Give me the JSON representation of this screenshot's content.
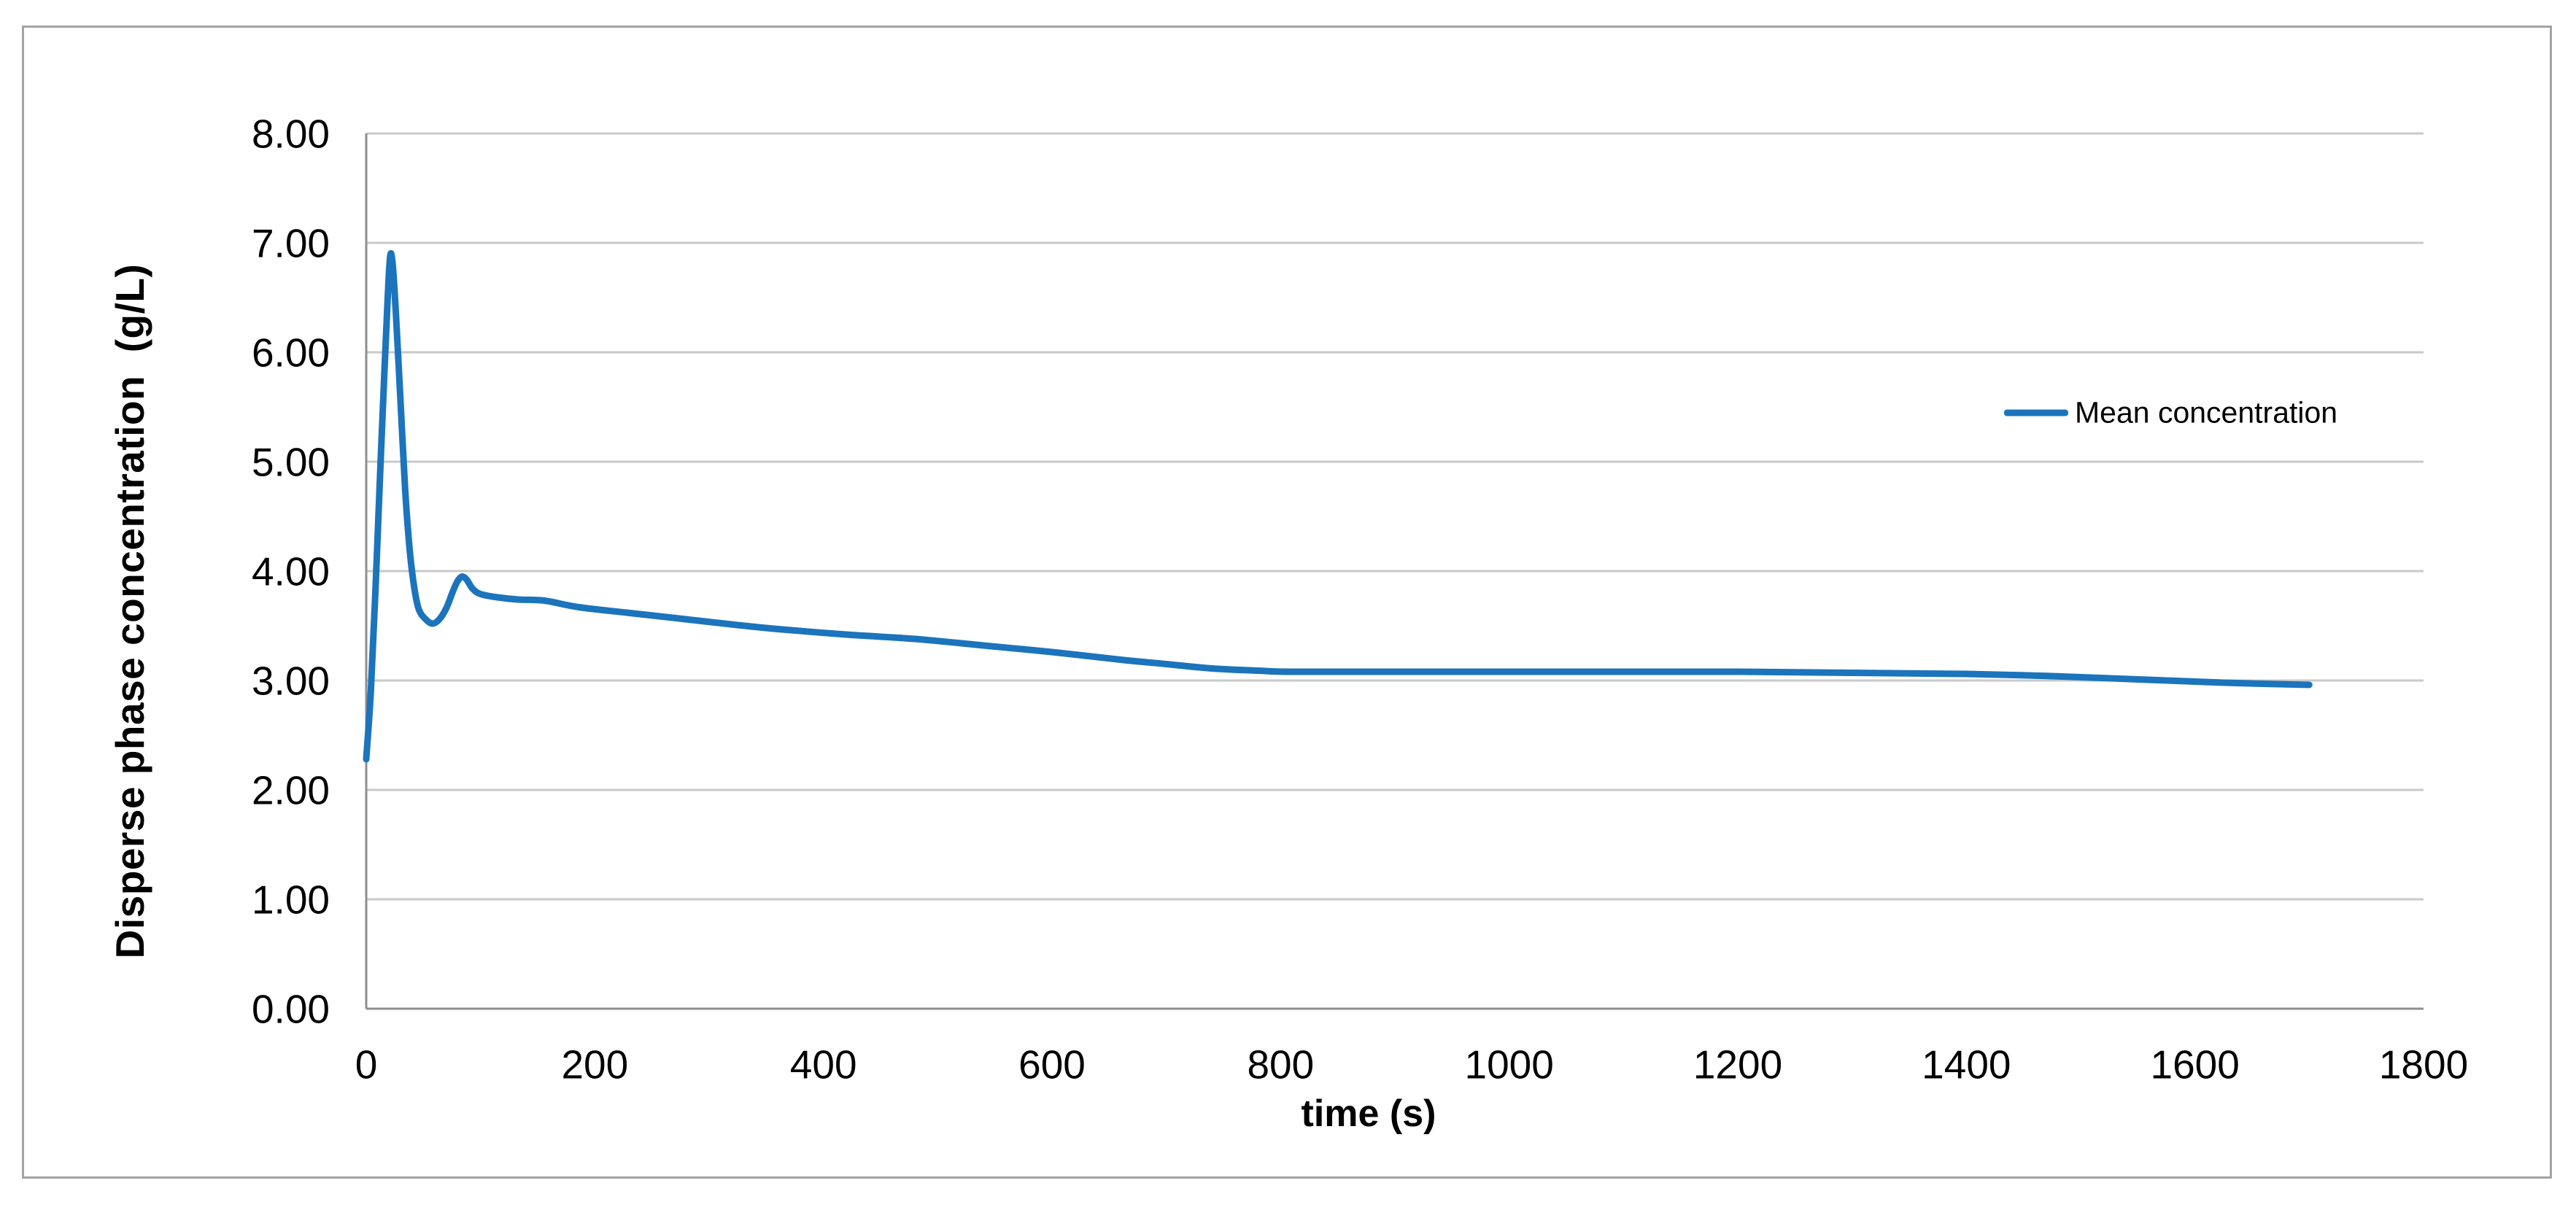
{
  "figure": {
    "background": "#FFFFFF",
    "border_color": "#A3A3A3"
  },
  "styles": {
    "grid_color": "#C9C9C9",
    "axis_color": "#8E8E8E",
    "text_color": "#000000",
    "line_color": "#1B74BC"
  },
  "chart_data": {
    "type": "line",
    "xlabel": "time (s)",
    "ylabel": "Disperse phase concentration  (g/L)",
    "xlim": [
      0,
      1800
    ],
    "ylim": [
      0,
      8
    ],
    "grid": "horizontal-only",
    "legend": {
      "position": "inside-right",
      "entries": [
        {
          "label": "Mean concentration",
          "color": "#1B74BC"
        }
      ]
    },
    "xticks": [
      {
        "value": 0,
        "label": "0"
      },
      {
        "value": 200,
        "label": "200"
      },
      {
        "value": 400,
        "label": "400"
      },
      {
        "value": 600,
        "label": "600"
      },
      {
        "value": 800,
        "label": "800"
      },
      {
        "value": 1000,
        "label": "1000"
      },
      {
        "value": 1200,
        "label": "1200"
      },
      {
        "value": 1400,
        "label": "1400"
      },
      {
        "value": 1600,
        "label": "1600"
      },
      {
        "value": 1800,
        "label": "1800"
      }
    ],
    "yticks": [
      {
        "value": 0,
        "label": "0.00"
      },
      {
        "value": 1,
        "label": "1.00"
      },
      {
        "value": 2,
        "label": "2.00"
      },
      {
        "value": 3,
        "label": "3.00"
      },
      {
        "value": 4,
        "label": "4.00"
      },
      {
        "value": 5,
        "label": "5.00"
      },
      {
        "value": 6,
        "label": "6.00"
      },
      {
        "value": 7,
        "label": "7.00"
      },
      {
        "value": 8,
        "label": "8.00"
      }
    ],
    "series": [
      {
        "name": "Mean concentration",
        "color": "#1B74BC",
        "points": [
          [
            0,
            2.28
          ],
          [
            4,
            2.9
          ],
          [
            8,
            3.8
          ],
          [
            12,
            4.85
          ],
          [
            16,
            5.85
          ],
          [
            19,
            6.55
          ],
          [
            21,
            6.88
          ],
          [
            23,
            6.82
          ],
          [
            26,
            6.35
          ],
          [
            30,
            5.55
          ],
          [
            34,
            4.75
          ],
          [
            38,
            4.2
          ],
          [
            42,
            3.85
          ],
          [
            46,
            3.65
          ],
          [
            52,
            3.56
          ],
          [
            58,
            3.52
          ],
          [
            64,
            3.56
          ],
          [
            70,
            3.66
          ],
          [
            76,
            3.82
          ],
          [
            80,
            3.91
          ],
          [
            84,
            3.95
          ],
          [
            88,
            3.92
          ],
          [
            93,
            3.84
          ],
          [
            100,
            3.79
          ],
          [
            115,
            3.76
          ],
          [
            133,
            3.74
          ],
          [
            156,
            3.73
          ],
          [
            186,
            3.67
          ],
          [
            228,
            3.62
          ],
          [
            271,
            3.57
          ],
          [
            322,
            3.51
          ],
          [
            360,
            3.47
          ],
          [
            420,
            3.42
          ],
          [
            480,
            3.38
          ],
          [
            540,
            3.32
          ],
          [
            600,
            3.26
          ],
          [
            660,
            3.19
          ],
          [
            700,
            3.15
          ],
          [
            740,
            3.11
          ],
          [
            780,
            3.09
          ],
          [
            810,
            3.08
          ],
          [
            900,
            3.08
          ],
          [
            1000,
            3.08
          ],
          [
            1100,
            3.08
          ],
          [
            1200,
            3.08
          ],
          [
            1300,
            3.07
          ],
          [
            1400,
            3.06
          ],
          [
            1475,
            3.04
          ],
          [
            1550,
            3.01
          ],
          [
            1625,
            2.98
          ],
          [
            1700,
            2.96
          ]
        ]
      }
    ]
  }
}
